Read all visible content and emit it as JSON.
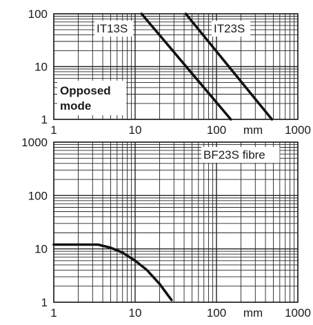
{
  "chart_data": [
    {
      "type": "line",
      "title": "",
      "xlabel": "mm",
      "ylabel": "",
      "x_scale": "log",
      "y_scale": "log",
      "xlim": [
        1,
        1000
      ],
      "ylim": [
        1,
        100
      ],
      "x_ticks": [
        "1",
        "10",
        "100",
        "1000"
      ],
      "y_ticks": [
        "1",
        "10",
        "100"
      ],
      "grid": true,
      "annotations": [
        "Opposed",
        "mode"
      ],
      "series": [
        {
          "name": "IT13S",
          "x": [
            12,
            150
          ],
          "y": [
            100,
            1
          ]
        },
        {
          "name": "IT23S",
          "x": [
            42,
            480
          ],
          "y": [
            100,
            1
          ]
        }
      ]
    },
    {
      "type": "line",
      "title": "",
      "xlabel": "mm",
      "ylabel": "",
      "x_scale": "log",
      "y_scale": "log",
      "xlim": [
        1,
        1000
      ],
      "ylim": [
        1,
        1000
      ],
      "x_ticks": [
        "1",
        "10",
        "100",
        "1000"
      ],
      "y_ticks": [
        "1",
        "10",
        "100",
        "1000"
      ],
      "grid": true,
      "series": [
        {
          "name": "BF23S fibre",
          "x": [
            1,
            2,
            3.5,
            5,
            7,
            10,
            14,
            20,
            28
          ],
          "y": [
            12,
            12,
            12,
            10.5,
            8.5,
            6,
            4,
            2.2,
            1.1
          ]
        }
      ]
    }
  ]
}
